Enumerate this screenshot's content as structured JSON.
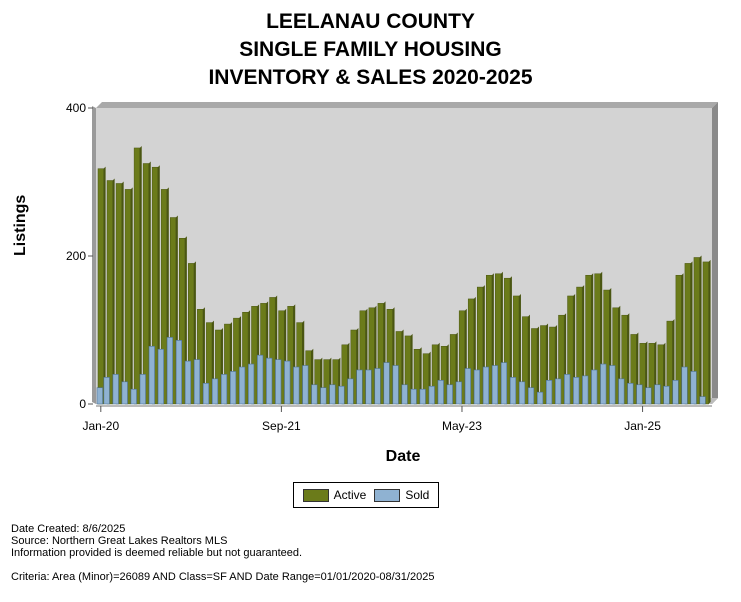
{
  "title_lines": [
    "LEELANAU COUNTY",
    "SINGLE FAMILY HOUSING",
    "INVENTORY & SALES 2020-2025"
  ],
  "footer": {
    "created": "Date Created: 8/6/2025",
    "source": "Source: Northern Great Lakes Realtors MLS",
    "disclaimer": "Information provided is deemed reliable but not guaranteed.",
    "criteria": "Criteria: Area (Minor)=26089 AND Class=SF AND Date Range=01/01/2020-08/31/2025"
  },
  "colors": {
    "active": "#6b7b1a",
    "sold": "#8fb2d2",
    "plot_bg": "#d3d3d3",
    "frame": "#8a8a8a"
  },
  "chart_data": {
    "type": "bar",
    "title": "LEELANAU COUNTY SINGLE FAMILY HOUSING INVENTORY & SALES 2020-2025",
    "xlabel": "Date",
    "ylabel": "Listings",
    "ylim": [
      0,
      400
    ],
    "yticks": [
      0,
      200,
      400
    ],
    "xtick_labels": [
      {
        "label": "Jan-20",
        "index": 0
      },
      {
        "label": "Sep-21",
        "index": 20
      },
      {
        "label": "May-23",
        "index": 40
      },
      {
        "label": "Jan-25",
        "index": 60
      }
    ],
    "categories": [
      "Jan-20",
      "Feb-20",
      "Mar-20",
      "Apr-20",
      "May-20",
      "Jun-20",
      "Jul-20",
      "Aug-20",
      "Sep-20",
      "Oct-20",
      "Nov-20",
      "Dec-20",
      "Jan-21",
      "Feb-21",
      "Mar-21",
      "Apr-21",
      "May-21",
      "Jun-21",
      "Jul-21",
      "Aug-21",
      "Sep-21",
      "Oct-21",
      "Nov-21",
      "Dec-21",
      "Jan-22",
      "Feb-22",
      "Mar-22",
      "Apr-22",
      "May-22",
      "Jun-22",
      "Jul-22",
      "Aug-22",
      "Sep-22",
      "Oct-22",
      "Nov-22",
      "Dec-22",
      "Jan-23",
      "Feb-23",
      "Mar-23",
      "Apr-23",
      "May-23",
      "Jun-23",
      "Jul-23",
      "Aug-23",
      "Sep-23",
      "Oct-23",
      "Nov-23",
      "Dec-23",
      "Jan-24",
      "Feb-24",
      "Mar-24",
      "Apr-24",
      "May-24",
      "Jun-24",
      "Jul-24",
      "Aug-24",
      "Sep-24",
      "Oct-24",
      "Nov-24",
      "Dec-24",
      "Jan-25",
      "Feb-25",
      "Mar-25",
      "Apr-25",
      "May-25",
      "Jun-25",
      "Jul-25",
      "Aug-25"
    ],
    "series": [
      {
        "name": "Active",
        "values": [
          318,
          302,
          298,
          290,
          346,
          325,
          320,
          290,
          252,
          224,
          190,
          128,
          110,
          100,
          108,
          116,
          124,
          132,
          136,
          144,
          126,
          132,
          110,
          72,
          60,
          60,
          60,
          80,
          100,
          126,
          130,
          136,
          128,
          98,
          92,
          74,
          68,
          80,
          78,
          94,
          126,
          142,
          158,
          174,
          176,
          170,
          146,
          118,
          102,
          106,
          104,
          120,
          146,
          158,
          174,
          176,
          154,
          130,
          120,
          94,
          82,
          82,
          80,
          112,
          174,
          190,
          198,
          192
        ],
        "name_colour": "#6b7b1a"
      },
      {
        "name": "Sold",
        "values": [
          22,
          36,
          40,
          30,
          20,
          40,
          78,
          74,
          90,
          86,
          58,
          60,
          28,
          34,
          40,
          44,
          50,
          54,
          66,
          62,
          60,
          58,
          50,
          52,
          26,
          22,
          26,
          24,
          34,
          46,
          46,
          48,
          56,
          52,
          26,
          20,
          20,
          24,
          32,
          26,
          30,
          48,
          46,
          50,
          52,
          56,
          36,
          30,
          22,
          16,
          32,
          34,
          40,
          36,
          38,
          46,
          54,
          52,
          34,
          28,
          26,
          22,
          26,
          24,
          32,
          50,
          44,
          10
        ],
        "name_colour": "#8fb2d2"
      }
    ]
  },
  "legend": {
    "active_label": "Active",
    "sold_label": "Sold"
  }
}
